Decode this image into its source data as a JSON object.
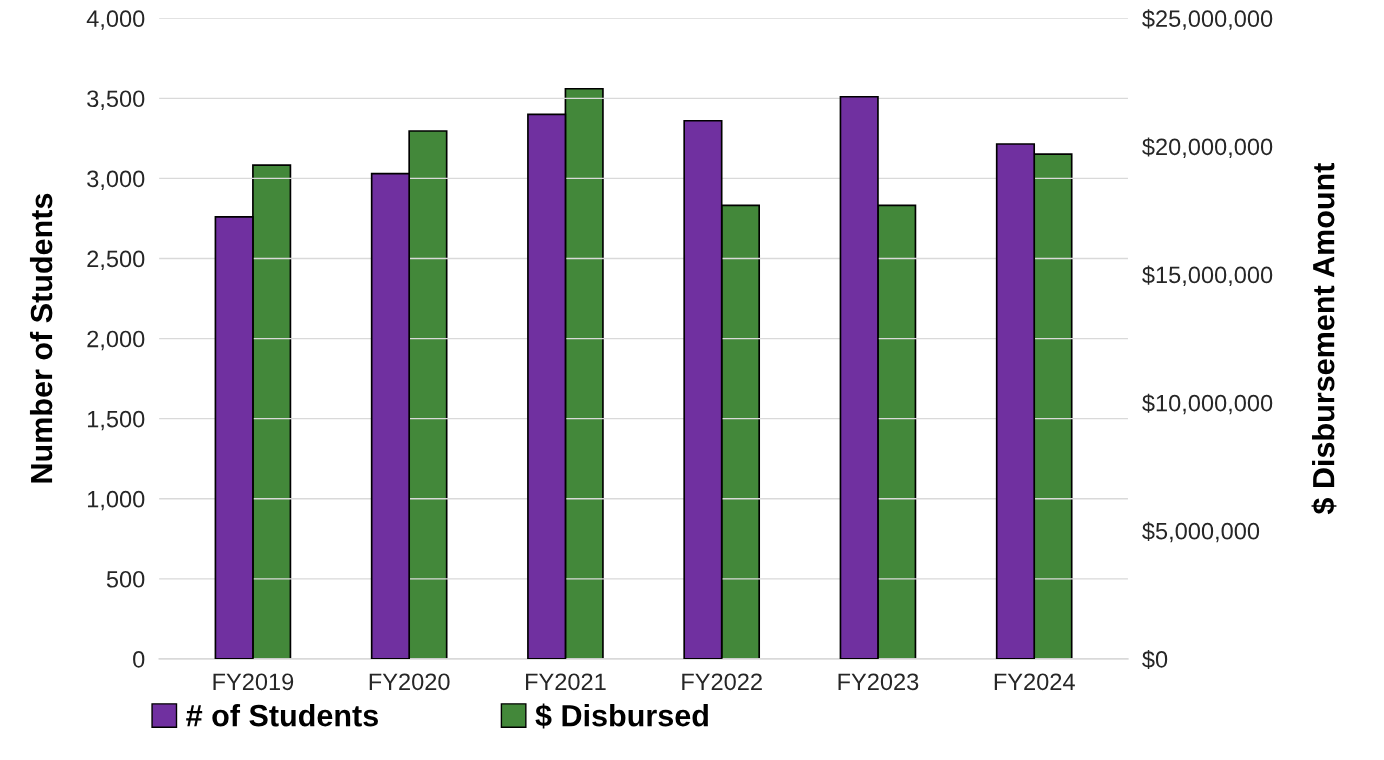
{
  "chart_data": {
    "type": "bar",
    "ylabel": "Number of Students",
    "y2label": "$ Disbursement Amount",
    "categories": [
      "FY2019",
      "FY2020",
      "FY2021",
      "FY2022",
      "FY2023",
      "FY2024"
    ],
    "series": [
      {
        "name": "# of Students",
        "color": "#7030a0",
        "values": [
          2760,
          3030,
          3400,
          3360,
          3510,
          3215
        ]
      },
      {
        "name": "$ Disbursed",
        "color": "#43883a",
        "axis": "y2",
        "values": [
          19270000,
          20600000,
          22250000,
          17700000,
          17700000,
          19700000
        ]
      }
    ],
    "ylim": [
      0,
      4000
    ],
    "yticks": [
      0,
      500,
      {
        "value": 1000,
        "label": "1,000"
      },
      {
        "value": 1500,
        "label": "1,500"
      },
      {
        "value": 2000,
        "label": "2,000"
      },
      {
        "value": 2500,
        "label": "2,500"
      },
      {
        "value": 3000,
        "label": "3,000"
      },
      {
        "value": 3500,
        "label": "3,500"
      },
      {
        "value": 4000,
        "label": "4,000"
      }
    ],
    "y2lim": [
      0,
      25000000
    ],
    "y2ticks": [
      {
        "value": 0,
        "label": "$0"
      },
      {
        "value": 5000000,
        "label": "$5,000,000"
      },
      {
        "value": 10000000,
        "label": "$10,000,000"
      },
      {
        "value": 15000000,
        "label": "$15,000,000"
      },
      {
        "value": 20000000,
        "label": "$20,000,000"
      },
      {
        "value": 25000000,
        "label": "$25,000,000"
      }
    ],
    "grid": "y",
    "legend": "bottom left"
  }
}
